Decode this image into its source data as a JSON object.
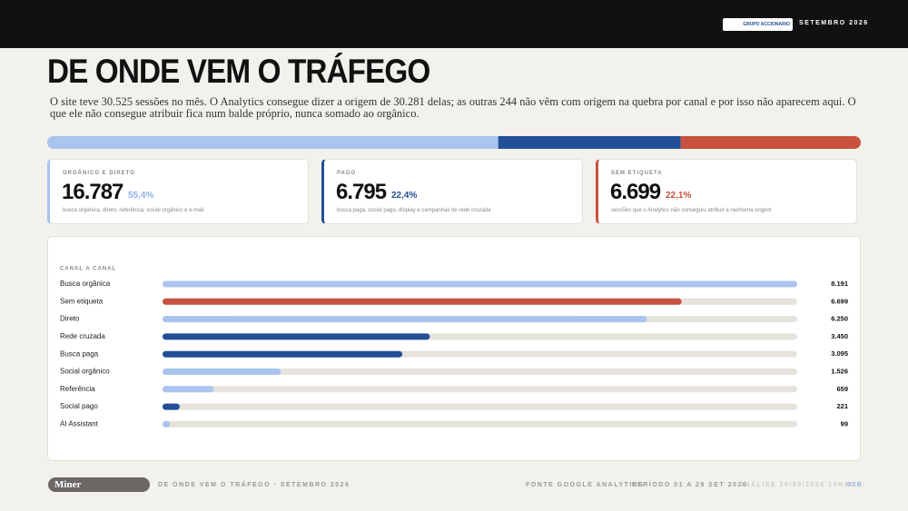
{
  "header": {
    "brand": "GRUPO ACCIONARIO",
    "date": "SETEMBRO 2026"
  },
  "title": "DE ONDE VEM O TRÁFEGO",
  "intro": "O site teve 30.525 sessões no mês. O Analytics consegue dizer a origem de 30.281 delas; as outras 244 não vêm com origem na quebra por canal e por isso não aparecem aqui. O que ele não consegue atribuir fica num balde próprio, nunca somado ao orgânico.",
  "cards": [
    {
      "label": "ORGÂNICO E DIRETO",
      "value": 16787,
      "value_label": "16.787",
      "share": "55,4%",
      "note": "busca orgânica, direto, referência, social orgânico e e-mail",
      "color": "#a9c4ee",
      "share_color": "#8fb0e6"
    },
    {
      "label": "PAGO",
      "value": 6795,
      "value_label": "6.795",
      "share": "22,4%",
      "note": "busca paga, social pago, display e campanhas de rede cruzada",
      "color": "#234f96",
      "share_color": "#234f96"
    },
    {
      "label": "SEM ETIQUETA",
      "value": 6699,
      "value_label": "6.699",
      "share": "22,1%",
      "note": "sessões que o Analytics não conseguiu atribuir a nenhuma origem",
      "color": "#c8523f",
      "share_color": "#c8523f"
    }
  ],
  "chart_data": {
    "type": "bar",
    "orientation": "horizontal",
    "subtitle": "CANAL A CANAL",
    "categories": [
      "Busca orgânica",
      "Sem etiqueta",
      "Direto",
      "Rede cruzada",
      "Busca paga",
      "Social orgânico",
      "Referência",
      "Social pago",
      "AI Assistant"
    ],
    "values": [
      8191,
      6699,
      6250,
      3450,
      3095,
      1526,
      659,
      221,
      99
    ],
    "value_labels": [
      "8.191",
      "6.699",
      "6.250",
      "3.450",
      "3.095",
      "1.526",
      "659",
      "221",
      "99"
    ],
    "colors": [
      "#a9c4ee",
      "#c8523f",
      "#a9c4ee",
      "#234f96",
      "#234f96",
      "#a9c4ee",
      "#a9c4ee",
      "#234f96",
      "#a9c4ee"
    ],
    "xlim": [
      0,
      8191
    ]
  },
  "footer": {
    "logo": "Miner",
    "section": "DE ONDE VEM O TRÁFEGO · SETEMBRO 2026",
    "source": "FONTE GOOGLE ANALYTICS",
    "period": "PERÍODO 01 A 29 SET 2026",
    "analysis": "ANÁLISE 29/09/2026 15H30",
    "page": "03B"
  }
}
